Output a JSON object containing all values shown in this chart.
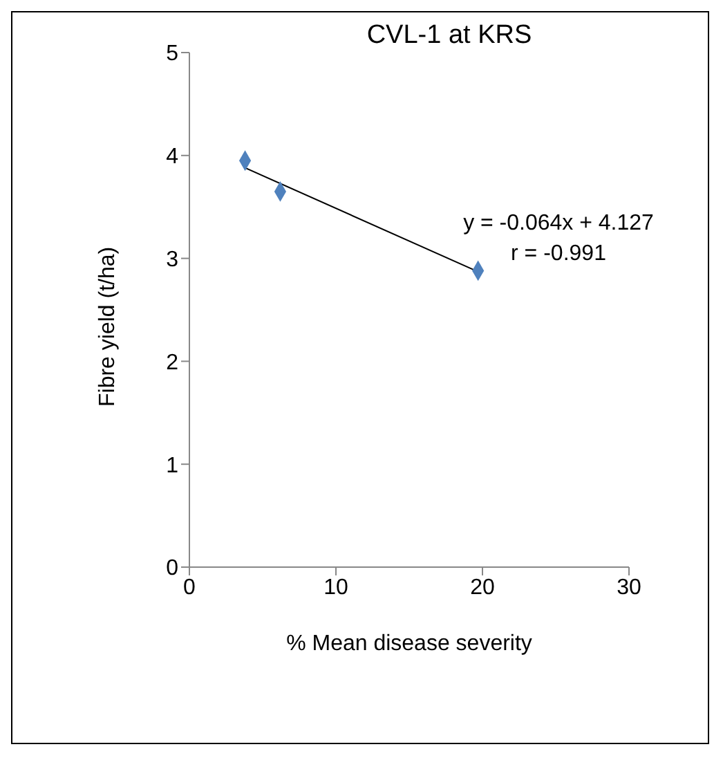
{
  "chart_data": {
    "type": "scatter",
    "title": "CVL-1 at KRS",
    "xlabel": "% Mean disease severity",
    "ylabel": "Fibre yield (t/ha)",
    "x": [
      3.8,
      6.2,
      19.7
    ],
    "series": [
      {
        "color": "#4f81bd",
        "values": [
          3.95,
          3.65,
          2.88
        ],
        "marker": "diamond"
      },
      {
        "type": "line",
        "color": "#000000",
        "x": [
          3.8,
          19.7
        ],
        "values": [
          3.88,
          2.87
        ],
        "marker": "none"
      }
    ],
    "xlim": [
      0,
      30
    ],
    "xticks": [
      0,
      10,
      20,
      30
    ],
    "ylim": [
      0,
      5
    ],
    "yticks": [
      0,
      1,
      2,
      3,
      4,
      5
    ],
    "grid": false,
    "legend": false,
    "annotations": [
      "y = -0.064x + 4.127",
      "r = -0.991"
    ]
  }
}
